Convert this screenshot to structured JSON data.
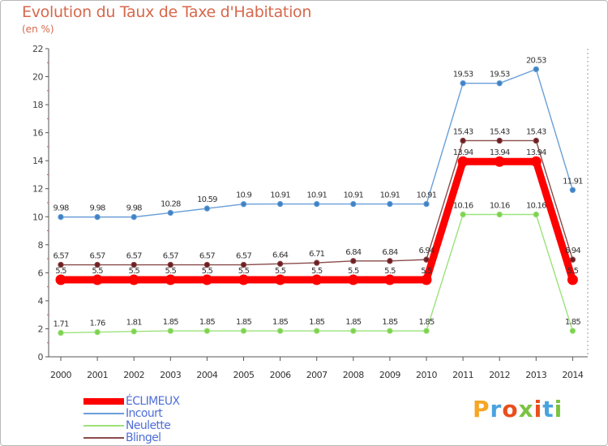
{
  "title": "Evolution du Taux de Taxe d'Habitation",
  "subtitle": "(en %)",
  "logo_text": "Proxiti",
  "logo_colors": [
    "#f5a623",
    "#4aa3df",
    "#e94e1b",
    "#7cc242",
    "#e94e1b",
    "#4aa3df",
    "#7cc242"
  ],
  "chart_data": {
    "type": "line",
    "title": "Evolution du Taux de Taxe d'Habitation",
    "ylabel": "(en %)",
    "xlabel": "",
    "ylim": [
      0,
      22
    ],
    "y_ticks": [
      0,
      2,
      4,
      6,
      8,
      10,
      12,
      14,
      16,
      18,
      20,
      22
    ],
    "grid": false,
    "legend_position": "bottom-left",
    "categories": [
      "2000",
      "2001",
      "2002",
      "2003",
      "2004",
      "2005",
      "2006",
      "2007",
      "2008",
      "2009",
      "2010",
      "2011",
      "2012",
      "2013",
      "2014"
    ],
    "series": [
      {
        "name": "Incourt",
        "color": "#6a9fd8",
        "marker_color": "#3f82c4",
        "values": [
          9.98,
          9.98,
          9.98,
          10.28,
          10.59,
          10.9,
          10.91,
          10.91,
          10.91,
          10.91,
          10.91,
          19.53,
          19.53,
          20.53,
          11.91
        ],
        "labels": [
          "9.98",
          "9.98",
          "9.98",
          "10.28",
          "10.59",
          "10.9",
          "10.91",
          "10.91",
          "10.91",
          "10.91",
          "10.91",
          "19.53",
          "19.53",
          "20.53",
          "11.91"
        ]
      },
      {
        "name": "Blingel",
        "color": "#8a4a4a",
        "marker_color": "#6e1f23",
        "values": [
          6.57,
          6.57,
          6.57,
          6.57,
          6.57,
          6.57,
          6.64,
          6.71,
          6.84,
          6.84,
          6.94,
          15.43,
          15.43,
          15.43,
          6.94
        ],
        "labels": [
          "6.57",
          "6.57",
          "6.57",
          "6.57",
          "6.57",
          "6.57",
          "6.64",
          "6.71",
          "6.84",
          "6.84",
          "6.94",
          "15.43",
          "15.43",
          "15.43",
          "6.94"
        ]
      },
      {
        "name": "Neulette",
        "color": "#9be27a",
        "marker_color": "#7ed14f",
        "values": [
          1.71,
          1.76,
          1.81,
          1.85,
          1.85,
          1.85,
          1.85,
          1.85,
          1.85,
          1.85,
          1.85,
          10.16,
          10.16,
          10.16,
          1.85
        ],
        "labels": [
          "1.71",
          "1.76",
          "1.81",
          "1.85",
          "1.85",
          "1.85",
          "1.85",
          "1.85",
          "1.85",
          "1.85",
          "1.85",
          "10.16",
          "10.16",
          "10.16",
          "1.85"
        ]
      },
      {
        "name": "ÉCLIMEUX",
        "color": "#ff0000",
        "marker_color": "#ff0000",
        "values": [
          5.5,
          5.5,
          5.5,
          5.5,
          5.5,
          5.5,
          5.5,
          5.5,
          5.5,
          5.5,
          5.5,
          13.94,
          13.94,
          13.94,
          5.5
        ],
        "labels": [
          "5.5",
          "5.5",
          "5.5",
          "5.5",
          "5.5",
          "5.5",
          "5.5",
          "5.5",
          "5.5",
          "5.5",
          "5.5",
          "13.94",
          "13.94",
          "13.94",
          "5.5"
        ]
      }
    ],
    "legend": [
      "ÉCLIMEUX",
      "Incourt",
      "Neulette",
      "Blingel"
    ]
  }
}
